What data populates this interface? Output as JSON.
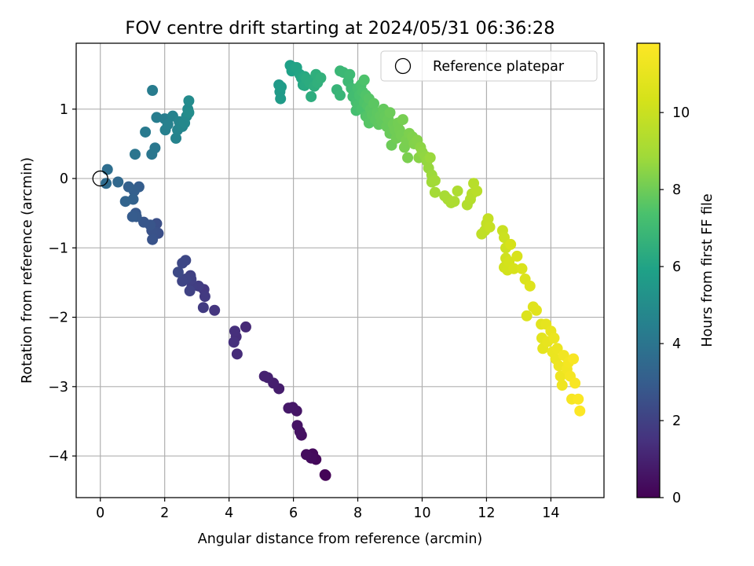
{
  "chart_data": {
    "type": "scatter",
    "title": "FOV centre drift starting at 2024/05/31 06:36:28",
    "xlabel": "Angular distance from reference (arcmin)",
    "ylabel": "Rotation from reference (arcmin)",
    "colorbar_label": "Hours from first FF file",
    "colormap": "viridis",
    "xlim": [
      -0.75,
      15.65
    ],
    "ylim": [
      -4.6,
      1.95
    ],
    "clim": [
      0,
      11.8
    ],
    "xticks": [
      0,
      2,
      4,
      6,
      8,
      10,
      12,
      14
    ],
    "yticks": [
      -4,
      -3,
      -2,
      -1,
      0,
      1
    ],
    "cticks": [
      0,
      2,
      4,
      6,
      8,
      10
    ],
    "grid": true,
    "legend": {
      "position": "top-right",
      "entries": [
        {
          "label": "Reference platepar",
          "marker": "open-circle"
        }
      ]
    },
    "reference_point": {
      "x": 0,
      "y": 0
    },
    "points": [
      {
        "x": 7.0,
        "y": -4.28,
        "c": 0.05
      },
      {
        "x": 6.98,
        "y": -4.27,
        "c": 0.1
      },
      {
        "x": 6.7,
        "y": -4.05,
        "c": 0.2
      },
      {
        "x": 6.6,
        "y": -3.97,
        "c": 0.25
      },
      {
        "x": 6.55,
        "y": -4.03,
        "c": 0.3
      },
      {
        "x": 6.4,
        "y": -3.98,
        "c": 0.35
      },
      {
        "x": 6.25,
        "y": -3.7,
        "c": 0.45
      },
      {
        "x": 6.2,
        "y": -3.65,
        "c": 0.5
      },
      {
        "x": 6.12,
        "y": -3.56,
        "c": 0.55
      },
      {
        "x": 6.1,
        "y": -3.35,
        "c": 0.6
      },
      {
        "x": 5.98,
        "y": -3.3,
        "c": 0.65
      },
      {
        "x": 5.85,
        "y": -3.31,
        "c": 0.7
      },
      {
        "x": 5.55,
        "y": -3.03,
        "c": 0.85
      },
      {
        "x": 5.38,
        "y": -2.95,
        "c": 0.9
      },
      {
        "x": 5.2,
        "y": -2.87,
        "c": 0.95
      },
      {
        "x": 5.1,
        "y": -2.85,
        "c": 1.0
      },
      {
        "x": 4.52,
        "y": -2.14,
        "c": 1.2
      },
      {
        "x": 4.25,
        "y": -2.53,
        "c": 1.3
      },
      {
        "x": 4.22,
        "y": -2.28,
        "c": 1.35
      },
      {
        "x": 4.18,
        "y": -2.2,
        "c": 1.4
      },
      {
        "x": 4.15,
        "y": -2.36,
        "c": 1.45
      },
      {
        "x": 3.55,
        "y": -1.9,
        "c": 1.6
      },
      {
        "x": 3.22,
        "y": -1.6,
        "c": 1.7
      },
      {
        "x": 3.25,
        "y": -1.7,
        "c": 1.75
      },
      {
        "x": 3.2,
        "y": -1.86,
        "c": 1.8
      },
      {
        "x": 3.05,
        "y": -1.55,
        "c": 1.85
      },
      {
        "x": 2.85,
        "y": -1.55,
        "c": 1.9
      },
      {
        "x": 2.82,
        "y": -1.45,
        "c": 1.95
      },
      {
        "x": 2.8,
        "y": -1.4,
        "c": 2.0
      },
      {
        "x": 2.78,
        "y": -1.62,
        "c": 2.05
      },
      {
        "x": 2.65,
        "y": -1.45,
        "c": 2.1
      },
      {
        "x": 2.55,
        "y": -1.48,
        "c": 2.15
      },
      {
        "x": 2.65,
        "y": -1.18,
        "c": 2.2
      },
      {
        "x": 2.55,
        "y": -1.22,
        "c": 2.25
      },
      {
        "x": 2.42,
        "y": -1.35,
        "c": 2.3
      },
      {
        "x": 1.8,
        "y": -0.79,
        "c": 2.45
      },
      {
        "x": 1.75,
        "y": -0.65,
        "c": 2.5
      },
      {
        "x": 1.7,
        "y": -0.77,
        "c": 2.55
      },
      {
        "x": 1.6,
        "y": -0.75,
        "c": 2.6
      },
      {
        "x": 1.62,
        "y": -0.88,
        "c": 2.65
      },
      {
        "x": 1.55,
        "y": -0.67,
        "c": 2.7
      },
      {
        "x": 1.35,
        "y": -0.63,
        "c": 2.75
      },
      {
        "x": 1.1,
        "y": -0.5,
        "c": 2.85
      },
      {
        "x": 1.12,
        "y": -0.55,
        "c": 2.9
      },
      {
        "x": 1.0,
        "y": -0.55,
        "c": 2.95
      },
      {
        "x": 1.2,
        "y": -0.12,
        "c": 3.05
      },
      {
        "x": 1.05,
        "y": -0.18,
        "c": 3.1
      },
      {
        "x": 0.88,
        "y": -0.12,
        "c": 3.15
      },
      {
        "x": 1.02,
        "y": -0.3,
        "c": 3.2
      },
      {
        "x": 0.78,
        "y": -0.33,
        "c": 3.3
      },
      {
        "x": 0.55,
        "y": -0.05,
        "c": 3.45
      },
      {
        "x": 0.18,
        "y": -0.07,
        "c": 3.6
      },
      {
        "x": 0.22,
        "y": 0.13,
        "c": 3.7
      },
      {
        "x": 1.08,
        "y": 0.35,
        "c": 4.0
      },
      {
        "x": 1.6,
        "y": 0.35,
        "c": 4.05
      },
      {
        "x": 1.7,
        "y": 0.44,
        "c": 4.1
      },
      {
        "x": 1.4,
        "y": 0.67,
        "c": 4.2
      },
      {
        "x": 1.62,
        "y": 1.27,
        "c": 4.3
      },
      {
        "x": 1.75,
        "y": 0.88,
        "c": 4.35
      },
      {
        "x": 2.0,
        "y": 0.86,
        "c": 4.4
      },
      {
        "x": 2.02,
        "y": 0.7,
        "c": 4.45
      },
      {
        "x": 2.1,
        "y": 0.78,
        "c": 4.5
      },
      {
        "x": 2.25,
        "y": 0.9,
        "c": 4.55
      },
      {
        "x": 2.35,
        "y": 0.58,
        "c": 4.6
      },
      {
        "x": 2.4,
        "y": 0.7,
        "c": 4.65
      },
      {
        "x": 2.45,
        "y": 0.82,
        "c": 4.7
      },
      {
        "x": 2.55,
        "y": 0.75,
        "c": 4.75
      },
      {
        "x": 2.62,
        "y": 0.8,
        "c": 4.8
      },
      {
        "x": 2.68,
        "y": 0.9,
        "c": 4.85
      },
      {
        "x": 2.72,
        "y": 1.0,
        "c": 4.9
      },
      {
        "x": 2.75,
        "y": 1.12,
        "c": 4.95
      },
      {
        "x": 2.75,
        "y": 0.95,
        "c": 5.0
      },
      {
        "x": 5.55,
        "y": 1.35,
        "c": 5.55
      },
      {
        "x": 5.58,
        "y": 1.25,
        "c": 5.6
      },
      {
        "x": 5.6,
        "y": 1.15,
        "c": 5.65
      },
      {
        "x": 5.62,
        "y": 1.32,
        "c": 5.7
      },
      {
        "x": 5.9,
        "y": 1.63,
        "c": 5.85
      },
      {
        "x": 5.95,
        "y": 1.55,
        "c": 5.9
      },
      {
        "x": 6.05,
        "y": 1.6,
        "c": 5.95
      },
      {
        "x": 6.1,
        "y": 1.6,
        "c": 6.0
      },
      {
        "x": 6.2,
        "y": 1.5,
        "c": 6.05
      },
      {
        "x": 6.25,
        "y": 1.45,
        "c": 6.1
      },
      {
        "x": 6.3,
        "y": 1.35,
        "c": 6.15
      },
      {
        "x": 6.35,
        "y": 1.47,
        "c": 6.2
      },
      {
        "x": 6.35,
        "y": 1.34,
        "c": 6.25
      },
      {
        "x": 6.4,
        "y": 1.44,
        "c": 6.3
      },
      {
        "x": 6.5,
        "y": 1.38,
        "c": 6.35
      },
      {
        "x": 6.55,
        "y": 1.18,
        "c": 6.4
      },
      {
        "x": 6.65,
        "y": 1.33,
        "c": 6.45
      },
      {
        "x": 6.7,
        "y": 1.5,
        "c": 6.5
      },
      {
        "x": 6.75,
        "y": 1.38,
        "c": 6.55
      },
      {
        "x": 6.85,
        "y": 1.45,
        "c": 6.6
      },
      {
        "x": 7.35,
        "y": 1.28,
        "c": 6.75
      },
      {
        "x": 7.45,
        "y": 1.2,
        "c": 6.8
      },
      {
        "x": 7.45,
        "y": 1.55,
        "c": 6.85
      },
      {
        "x": 7.55,
        "y": 1.53,
        "c": 6.9
      },
      {
        "x": 7.7,
        "y": 1.4,
        "c": 6.95
      },
      {
        "x": 7.75,
        "y": 1.5,
        "c": 7.0
      },
      {
        "x": 7.8,
        "y": 1.3,
        "c": 7.05
      },
      {
        "x": 7.85,
        "y": 1.18,
        "c": 7.1
      },
      {
        "x": 7.9,
        "y": 1.2,
        "c": 7.15
      },
      {
        "x": 7.95,
        "y": 1.1,
        "c": 7.2
      },
      {
        "x": 7.95,
        "y": 0.98,
        "c": 7.22
      },
      {
        "x": 8.0,
        "y": 1.3,
        "c": 7.25
      },
      {
        "x": 8.0,
        "y": 1.05,
        "c": 7.3
      },
      {
        "x": 8.05,
        "y": 1.2,
        "c": 7.32
      },
      {
        "x": 8.1,
        "y": 1.35,
        "c": 7.35
      },
      {
        "x": 8.12,
        "y": 1.0,
        "c": 7.38
      },
      {
        "x": 8.15,
        "y": 1.25,
        "c": 7.4
      },
      {
        "x": 8.2,
        "y": 1.42,
        "c": 7.42
      },
      {
        "x": 8.2,
        "y": 1.1,
        "c": 7.45
      },
      {
        "x": 8.25,
        "y": 0.9,
        "c": 7.48
      },
      {
        "x": 8.25,
        "y": 1.2,
        "c": 7.5
      },
      {
        "x": 8.3,
        "y": 1.05,
        "c": 7.52
      },
      {
        "x": 8.3,
        "y": 0.88,
        "c": 7.55
      },
      {
        "x": 8.35,
        "y": 1.15,
        "c": 7.58
      },
      {
        "x": 8.35,
        "y": 0.8,
        "c": 7.6
      },
      {
        "x": 8.4,
        "y": 1.0,
        "c": 7.62
      },
      {
        "x": 8.45,
        "y": 0.92,
        "c": 7.65
      },
      {
        "x": 8.5,
        "y": 1.08,
        "c": 7.68
      },
      {
        "x": 8.55,
        "y": 0.85,
        "c": 7.7
      },
      {
        "x": 8.6,
        "y": 0.95,
        "c": 7.72
      },
      {
        "x": 8.65,
        "y": 0.78,
        "c": 7.75
      },
      {
        "x": 8.7,
        "y": 0.9,
        "c": 7.78
      },
      {
        "x": 8.75,
        "y": 0.82,
        "c": 7.8
      },
      {
        "x": 8.8,
        "y": 1.0,
        "c": 7.82
      },
      {
        "x": 8.85,
        "y": 0.9,
        "c": 7.85
      },
      {
        "x": 8.9,
        "y": 0.75,
        "c": 7.88
      },
      {
        "x": 8.95,
        "y": 0.85,
        "c": 7.9
      },
      {
        "x": 9.0,
        "y": 0.65,
        "c": 7.92
      },
      {
        "x": 9.0,
        "y": 0.95,
        "c": 7.95
      },
      {
        "x": 9.05,
        "y": 0.48,
        "c": 7.98
      },
      {
        "x": 9.1,
        "y": 0.78,
        "c": 8.0
      },
      {
        "x": 9.15,
        "y": 0.7,
        "c": 8.02
      },
      {
        "x": 9.2,
        "y": 0.58,
        "c": 8.05
      },
      {
        "x": 9.25,
        "y": 0.8,
        "c": 8.08
      },
      {
        "x": 9.3,
        "y": 0.7,
        "c": 8.1
      },
      {
        "x": 9.35,
        "y": 0.62,
        "c": 8.12
      },
      {
        "x": 9.4,
        "y": 0.85,
        "c": 8.15
      },
      {
        "x": 9.45,
        "y": 0.45,
        "c": 8.18
      },
      {
        "x": 9.5,
        "y": 0.55,
        "c": 8.2
      },
      {
        "x": 9.55,
        "y": 0.3,
        "c": 8.22
      },
      {
        "x": 9.6,
        "y": 0.65,
        "c": 8.25
      },
      {
        "x": 9.7,
        "y": 0.6,
        "c": 8.3
      },
      {
        "x": 9.75,
        "y": 0.5,
        "c": 8.35
      },
      {
        "x": 9.85,
        "y": 0.55,
        "c": 8.4
      },
      {
        "x": 9.9,
        "y": 0.3,
        "c": 8.45
      },
      {
        "x": 9.95,
        "y": 0.45,
        "c": 8.5
      },
      {
        "x": 10.0,
        "y": 0.38,
        "c": 8.55
      },
      {
        "x": 10.1,
        "y": 0.32,
        "c": 8.6
      },
      {
        "x": 10.15,
        "y": 0.25,
        "c": 8.65
      },
      {
        "x": 10.2,
        "y": 0.15,
        "c": 8.7
      },
      {
        "x": 10.25,
        "y": 0.3,
        "c": 8.75
      },
      {
        "x": 10.3,
        "y": 0.05,
        "c": 8.8
      },
      {
        "x": 10.3,
        "y": -0.05,
        "c": 8.85
      },
      {
        "x": 10.4,
        "y": -0.03,
        "c": 8.9
      },
      {
        "x": 10.4,
        "y": -0.2,
        "c": 8.95
      },
      {
        "x": 10.7,
        "y": -0.25,
        "c": 9.05
      },
      {
        "x": 10.8,
        "y": -0.3,
        "c": 9.1
      },
      {
        "x": 10.9,
        "y": -0.35,
        "c": 9.15
      },
      {
        "x": 11.0,
        "y": -0.33,
        "c": 9.2
      },
      {
        "x": 11.1,
        "y": -0.18,
        "c": 9.25
      },
      {
        "x": 11.4,
        "y": -0.38,
        "c": 9.35
      },
      {
        "x": 11.5,
        "y": -0.3,
        "c": 9.4
      },
      {
        "x": 11.55,
        "y": -0.22,
        "c": 9.45
      },
      {
        "x": 11.6,
        "y": -0.07,
        "c": 9.5
      },
      {
        "x": 11.7,
        "y": -0.18,
        "c": 9.55
      },
      {
        "x": 11.85,
        "y": -0.8,
        "c": 9.7
      },
      {
        "x": 11.95,
        "y": -0.75,
        "c": 9.75
      },
      {
        "x": 12.0,
        "y": -0.65,
        "c": 9.8
      },
      {
        "x": 12.05,
        "y": -0.58,
        "c": 9.85
      },
      {
        "x": 12.1,
        "y": -0.7,
        "c": 9.9
      },
      {
        "x": 12.5,
        "y": -0.75,
        "c": 10.0
      },
      {
        "x": 12.55,
        "y": -0.85,
        "c": 10.05
      },
      {
        "x": 12.6,
        "y": -1.0,
        "c": 10.1
      },
      {
        "x": 12.6,
        "y": -1.15,
        "c": 10.15
      },
      {
        "x": 12.55,
        "y": -1.28,
        "c": 10.2
      },
      {
        "x": 12.65,
        "y": -1.32,
        "c": 10.25
      },
      {
        "x": 12.7,
        "y": -1.2,
        "c": 10.3
      },
      {
        "x": 12.75,
        "y": -0.95,
        "c": 10.35
      },
      {
        "x": 12.85,
        "y": -1.3,
        "c": 10.4
      },
      {
        "x": 12.95,
        "y": -1.12,
        "c": 10.45
      },
      {
        "x": 13.1,
        "y": -1.3,
        "c": 10.5
      },
      {
        "x": 13.2,
        "y": -1.45,
        "c": 10.55
      },
      {
        "x": 13.25,
        "y": -1.98,
        "c": 10.6
      },
      {
        "x": 13.35,
        "y": -1.55,
        "c": 10.65
      },
      {
        "x": 13.45,
        "y": -1.85,
        "c": 10.7
      },
      {
        "x": 13.55,
        "y": -1.9,
        "c": 10.75
      },
      {
        "x": 13.7,
        "y": -2.1,
        "c": 10.8
      },
      {
        "x": 13.72,
        "y": -2.3,
        "c": 10.85
      },
      {
        "x": 13.75,
        "y": -2.45,
        "c": 10.9
      },
      {
        "x": 13.85,
        "y": -2.1,
        "c": 10.95
      },
      {
        "x": 13.9,
        "y": -2.35,
        "c": 11.0
      },
      {
        "x": 14.0,
        "y": -2.2,
        "c": 11.05
      },
      {
        "x": 14.05,
        "y": -2.5,
        "c": 11.1
      },
      {
        "x": 14.1,
        "y": -2.3,
        "c": 11.12
      },
      {
        "x": 14.15,
        "y": -2.6,
        "c": 11.15
      },
      {
        "x": 14.2,
        "y": -2.45,
        "c": 11.18
      },
      {
        "x": 14.25,
        "y": -2.7,
        "c": 11.2
      },
      {
        "x": 14.3,
        "y": -2.85,
        "c": 11.25
      },
      {
        "x": 14.35,
        "y": -2.98,
        "c": 11.3
      },
      {
        "x": 14.4,
        "y": -2.55,
        "c": 11.35
      },
      {
        "x": 14.5,
        "y": -2.75,
        "c": 11.4
      },
      {
        "x": 14.55,
        "y": -2.65,
        "c": 11.45
      },
      {
        "x": 14.6,
        "y": -2.85,
        "c": 11.5
      },
      {
        "x": 14.65,
        "y": -3.18,
        "c": 11.55
      },
      {
        "x": 14.75,
        "y": -2.95,
        "c": 11.6
      },
      {
        "x": 14.7,
        "y": -2.6,
        "c": 11.62
      },
      {
        "x": 14.85,
        "y": -3.18,
        "c": 11.7
      },
      {
        "x": 14.9,
        "y": -3.35,
        "c": 11.78
      }
    ]
  }
}
